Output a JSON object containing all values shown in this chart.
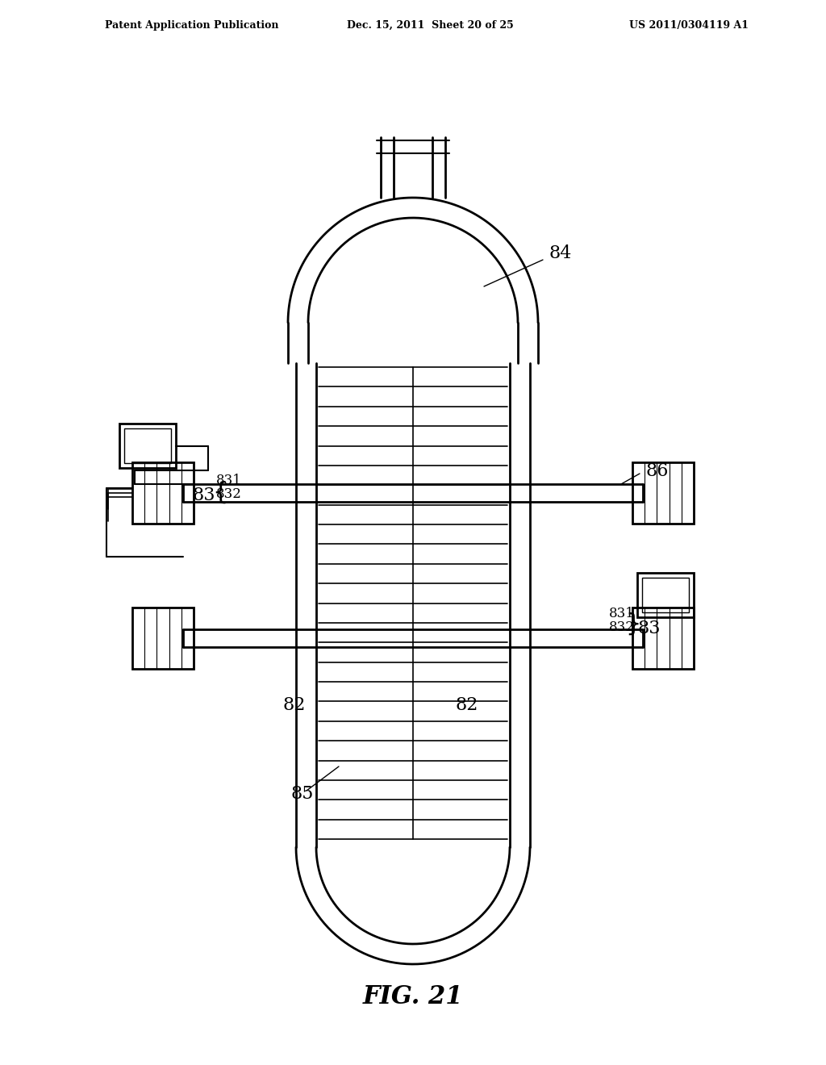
{
  "title": "FIG. 21",
  "header_left": "Patent Application Publication",
  "header_mid": "Dec. 15, 2011  Sheet 20 of 25",
  "header_right": "US 2011/0304119 A1",
  "bg_color": "#ffffff",
  "line_color": "#000000",
  "label_84": "84",
  "label_86": "86",
  "label_83_left": "83",
  "label_831_left_top": "831",
  "label_832_left_top": "832",
  "label_83_right": "83",
  "label_831_right": "831",
  "label_832_right": "832",
  "label_82_left": "82",
  "label_82_right": "82",
  "label_85": "85"
}
